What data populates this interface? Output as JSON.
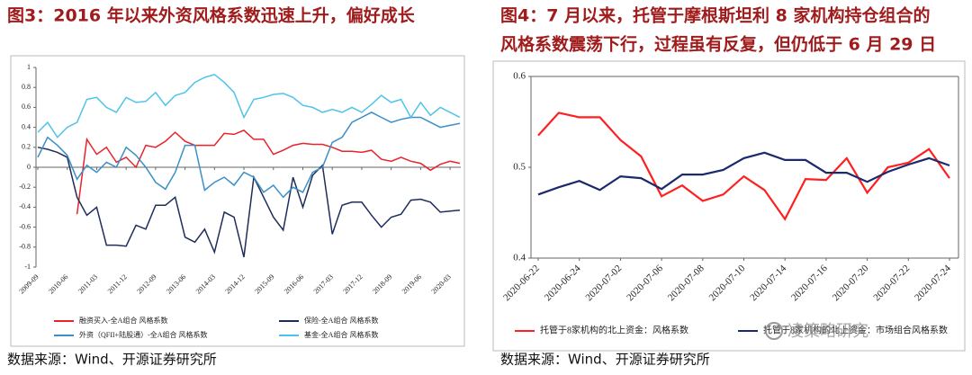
{
  "chart_data": [
    {
      "type": "line",
      "title": "图3：2016 年以来外资风格系数迅速上升，偏好成长",
      "source": "数据来源：Wind、开源证券研究所",
      "categories": [
        "2009-09",
        null,
        null,
        "2010-06",
        null,
        null,
        "2011-03",
        null,
        null,
        "2011-12",
        null,
        null,
        "2012-09",
        null,
        null,
        "2013-06",
        null,
        null,
        "2014-03",
        null,
        null,
        "2014-12",
        null,
        null,
        "2015-09",
        null,
        null,
        "2016-06",
        null,
        null,
        "2017-03",
        null,
        null,
        "2017-12",
        null,
        null,
        "2018-09",
        null,
        null,
        "2019-06",
        null,
        null,
        "2020-03",
        null
      ],
      "ylim": [
        -1,
        1
      ],
      "yticks": [
        -1,
        -0.8,
        -0.6,
        -0.4,
        -0.2,
        0,
        0.2,
        0.4,
        0.6,
        0.8,
        1
      ],
      "grid": false,
      "series": [
        {
          "name": "融资买入-全A组合 风格系数",
          "color": "#e8232a",
          "values": [
            null,
            null,
            null,
            null,
            -0.47,
            0.28,
            0.13,
            0.2,
            0.05,
            0.1,
            0.0,
            0.22,
            0.2,
            0.26,
            0.35,
            0.26,
            0.22,
            0.22,
            0.22,
            0.34,
            0.33,
            0.37,
            0.28,
            0.28,
            0.13,
            0.17,
            0.22,
            0.24,
            0.23,
            0.23,
            0.2,
            0.16,
            0.16,
            0.15,
            0.17,
            0.08,
            0.06,
            0.1,
            0.06,
            0.04,
            -0.03,
            0.03,
            0.06,
            0.04
          ]
        },
        {
          "name": "保险-全A组合 风格系数",
          "color": "#1f2d5c",
          "values": [
            0.2,
            0.18,
            0.15,
            0.1,
            -0.3,
            -0.48,
            -0.4,
            -0.78,
            -0.78,
            -0.79,
            -0.58,
            -0.62,
            -0.38,
            -0.38,
            -0.3,
            -0.7,
            -0.75,
            -0.62,
            -0.85,
            -0.45,
            -0.5,
            -0.9,
            -0.1,
            -0.3,
            -0.5,
            -0.63,
            -0.1,
            -0.4,
            -0.08,
            0.02,
            -0.67,
            -0.38,
            -0.35,
            -0.35,
            -0.48,
            -0.6,
            -0.5,
            -0.47,
            -0.33,
            -0.32,
            -0.35,
            -0.45,
            -0.44,
            -0.43
          ]
        },
        {
          "name": "外资（QFII+陆股通）-全A组合 风格系数",
          "color": "#3a8fc7",
          "values": [
            0.1,
            0.3,
            0.22,
            0.12,
            -0.12,
            0.02,
            -0.05,
            0.05,
            0.0,
            0.2,
            0.12,
            0.0,
            -0.15,
            -0.22,
            -0.05,
            0.22,
            0.22,
            -0.23,
            -0.15,
            -0.1,
            -0.18,
            -0.05,
            -0.1,
            -0.25,
            -0.18,
            -0.3,
            -0.2,
            -0.25,
            -0.05,
            0.0,
            0.25,
            0.3,
            0.45,
            0.5,
            0.55,
            0.5,
            0.45,
            0.48,
            0.5,
            0.5,
            0.45,
            0.4,
            0.42,
            0.44
          ]
        },
        {
          "name": "基金-全A组合 风格系数",
          "color": "#4fc3e8",
          "values": [
            0.35,
            0.45,
            0.3,
            0.4,
            0.45,
            0.68,
            0.7,
            0.6,
            0.55,
            0.7,
            0.65,
            0.66,
            0.75,
            0.62,
            0.72,
            0.75,
            0.85,
            0.9,
            0.93,
            0.85,
            0.75,
            0.5,
            0.68,
            0.7,
            0.73,
            0.74,
            0.7,
            0.62,
            0.6,
            0.55,
            0.58,
            0.55,
            0.6,
            0.55,
            0.63,
            0.72,
            0.65,
            0.68,
            0.5,
            0.65,
            0.52,
            0.6,
            0.55,
            0.5
          ]
        }
      ]
    },
    {
      "type": "line",
      "title": [
        "图4：7 月以来，托管于摩根斯坦利 8 家机构持仓组合的",
        "风格系数震荡下行，过程虽有反复，但仍低于 6 月 29 日"
      ],
      "source": "数据来源：Wind、开源证券研究所",
      "categories": [
        "2020-06-22",
        null,
        "2020-06-24",
        null,
        "2020-07-02",
        null,
        "2020-07-06",
        null,
        "2020-07-08",
        null,
        "2020-07-10",
        null,
        "2020-07-14",
        null,
        "2020-07-16",
        null,
        "2020-07-20",
        null,
        "2020-07-22",
        null,
        "2020-07-24"
      ],
      "ylim": [
        0.4,
        0.6
      ],
      "yticks": [
        0.4,
        0.5,
        0.6
      ],
      "grid": false,
      "series": [
        {
          "name": "托管于8家机构的北上资金：风格系数",
          "color": "#ff1f1f",
          "values": [
            0.535,
            0.56,
            0.555,
            0.555,
            0.53,
            0.512,
            0.468,
            0.48,
            0.463,
            0.47,
            0.49,
            0.475,
            0.443,
            0.487,
            0.486,
            0.51,
            0.472,
            0.5,
            0.505,
            0.52,
            0.488
          ]
        },
        {
          "name": "托管于8家机构的北上资金：市场组合风格系数",
          "color": "#1a2a6c",
          "values": [
            0.47,
            0.478,
            0.485,
            0.475,
            0.49,
            0.488,
            0.476,
            0.492,
            0.492,
            0.497,
            0.51,
            0.516,
            0.508,
            0.508,
            0.494,
            0.494,
            0.484,
            0.495,
            0.503,
            0.51,
            0.502
          ]
        }
      ]
    }
  ],
  "watermark": "凌策略研究"
}
